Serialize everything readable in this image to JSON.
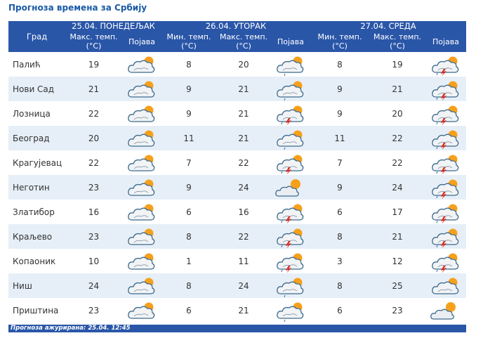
{
  "title": "Прогноза времена за Србију",
  "header": {
    "city": "Град",
    "days": [
      {
        "date": "25.04. ПОНЕДЕЉАК",
        "cols": [
          "Макс. темп. (°C)",
          "Појава"
        ]
      },
      {
        "date": "26.04. УТОРАК",
        "cols": [
          "Мин. темп. (°C)",
          "Макс. темп. (°C)",
          "Појава"
        ]
      },
      {
        "date": "27.04. СРЕДА",
        "cols": [
          "Мин. темп. (°C)",
          "Макс. темп. (°C)",
          "Појава"
        ]
      }
    ]
  },
  "rows": [
    {
      "city": "Палић",
      "d1_max": "19",
      "d1_icon": "cloudy-sun-icon",
      "d2_min": "8",
      "d2_max": "20",
      "d2_icon": "cloud-sun-drizzle-icon",
      "d3_min": "8",
      "d3_max": "19",
      "d3_icon": "thunderstorm-icon"
    },
    {
      "city": "Нови Сад",
      "d1_max": "21",
      "d1_icon": "cloudy-sun-icon",
      "d2_min": "9",
      "d2_max": "21",
      "d2_icon": "cloud-sun-drizzle-icon",
      "d3_min": "9",
      "d3_max": "21",
      "d3_icon": "thunderstorm-icon"
    },
    {
      "city": "Лозница",
      "d1_max": "22",
      "d1_icon": "cloudy-sun-icon",
      "d2_min": "9",
      "d2_max": "21",
      "d2_icon": "thunderstorm-icon",
      "d3_min": "9",
      "d3_max": "20",
      "d3_icon": "thunderstorm-icon"
    },
    {
      "city": "Београд",
      "d1_max": "20",
      "d1_icon": "cloudy-sun-icon",
      "d2_min": "11",
      "d2_max": "21",
      "d2_icon": "cloud-sun-drizzle-icon",
      "d3_min": "11",
      "d3_max": "22",
      "d3_icon": "thunderstorm-icon"
    },
    {
      "city": "Крагујевац",
      "d1_max": "22",
      "d1_icon": "cloudy-sun-icon",
      "d2_min": "7",
      "d2_max": "22",
      "d2_icon": "thunderstorm-icon",
      "d3_min": "7",
      "d3_max": "22",
      "d3_icon": "thunderstorm-icon"
    },
    {
      "city": "Неготин",
      "d1_max": "23",
      "d1_icon": "cloudy-sun-icon",
      "d2_min": "9",
      "d2_max": "24",
      "d2_icon": "partly-cloudy-icon",
      "d3_min": "9",
      "d3_max": "24",
      "d3_icon": "thunderstorm-icon"
    },
    {
      "city": "Златибор",
      "d1_max": "16",
      "d1_icon": "cloudy-sun-icon",
      "d2_min": "6",
      "d2_max": "16",
      "d2_icon": "thunderstorm-icon",
      "d3_min": "6",
      "d3_max": "17",
      "d3_icon": "thunderstorm-icon"
    },
    {
      "city": "Краљево",
      "d1_max": "23",
      "d1_icon": "cloudy-sun-icon",
      "d2_min": "8",
      "d2_max": "22",
      "d2_icon": "thunderstorm-icon",
      "d3_min": "8",
      "d3_max": "21",
      "d3_icon": "thunderstorm-icon"
    },
    {
      "city": "Копаоник",
      "d1_max": "10",
      "d1_icon": "cloudy-sun-icon",
      "d2_min": "1",
      "d2_max": "11",
      "d2_icon": "thunderstorm-icon",
      "d3_min": "3",
      "d3_max": "12",
      "d3_icon": "thunderstorm-icon"
    },
    {
      "city": "Ниш",
      "d1_max": "24",
      "d1_icon": "cloudy-sun-icon",
      "d2_min": "8",
      "d2_max": "24",
      "d2_icon": "cloud-sun-drizzle-icon",
      "d3_min": "8",
      "d3_max": "25",
      "d3_icon": "cloudy-sun-icon"
    },
    {
      "city": "Приштина",
      "d1_max": "23",
      "d1_icon": "cloudy-sun-icon",
      "d2_min": "6",
      "d2_max": "21",
      "d2_icon": "cloud-sun-drizzle-icon",
      "d3_min": "6",
      "d3_max": "23",
      "d3_icon": "partly-cloudy-icon"
    }
  ],
  "footer": "Прогноза ажурирана:  25.04. 12:45",
  "colors": {
    "header_bg": "#2a56a8",
    "row_alt": "#e6eff8",
    "title": "#1a5aa6",
    "sun": "#f7a01c",
    "bolt": "#d8281e"
  }
}
